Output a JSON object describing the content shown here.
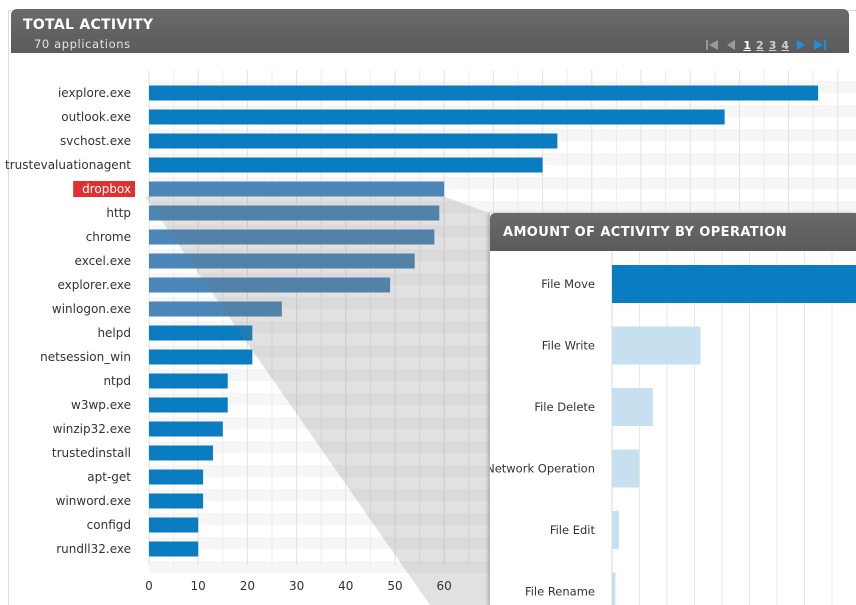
{
  "total_activity": {
    "title": "TOTAL ACTIVITY",
    "subtitle": "70 applications",
    "pager": {
      "pages": [
        "1",
        "2",
        "3",
        "4"
      ],
      "current": "1"
    },
    "highlight_color": "#e03030",
    "bar_color": "#0a7cc2"
  },
  "detail": {
    "title": "AMOUNT OF ACTIVITY BY OPERATION",
    "bar_color": "#0a7cc2",
    "faded_color": "#c6e0f0"
  },
  "chart_data": [
    {
      "type": "bar",
      "orientation": "horizontal",
      "title": "TOTAL ACTIVITY",
      "categories": [
        "iexplore.exe",
        "outlook.exe",
        "svchost.exe",
        "trustevaluationagent",
        "dropbox",
        "http",
        "chrome",
        "excel.exe",
        "explorer.exe",
        "winlogon.exe",
        "helpd",
        "netsession_win",
        "ntpd",
        "w3wp.exe",
        "winzip32.exe",
        "trustedinstall",
        "apt-get",
        "winword.exe",
        "configd",
        "rundll32.exe"
      ],
      "values": [
        136,
        117,
        83,
        80,
        60,
        59,
        58,
        54,
        49,
        27,
        21,
        21,
        16,
        16,
        15,
        13,
        11,
        11,
        10,
        10
      ],
      "highlighted_category": "dropbox",
      "xticks": [
        "0",
        "10",
        "20",
        "30",
        "40",
        "50",
        "60"
      ],
      "xlim": [
        0,
        140
      ],
      "grid": true
    },
    {
      "type": "bar",
      "orientation": "horizontal",
      "title": "AMOUNT OF ACTIVITY BY OPERATION",
      "categories": [
        "File Move",
        "File Write",
        "File Delete",
        "Network Operation",
        "File Edit",
        "File Rename"
      ],
      "values": [
        36,
        13,
        6,
        4,
        1,
        0.5
      ],
      "xlim": [
        0,
        36
      ],
      "grid": true
    }
  ]
}
